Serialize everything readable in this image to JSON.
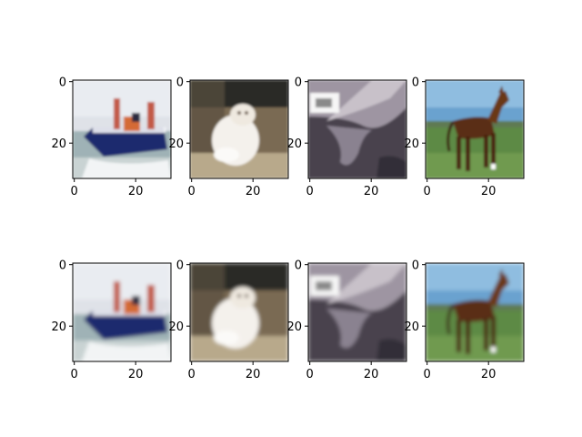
{
  "figure": {
    "x_ticks": [
      "0",
      "20"
    ],
    "y_ticks": [
      "0",
      "20"
    ],
    "rows": [
      {
        "panels": [
          {
            "subject": "ship"
          },
          {
            "subject": "cat"
          },
          {
            "subject": "close-up-animal"
          },
          {
            "subject": "horse"
          }
        ]
      },
      {
        "panels": [
          {
            "subject": "ship"
          },
          {
            "subject": "cat"
          },
          {
            "subject": "close-up-animal"
          },
          {
            "subject": "horse"
          }
        ]
      }
    ]
  }
}
